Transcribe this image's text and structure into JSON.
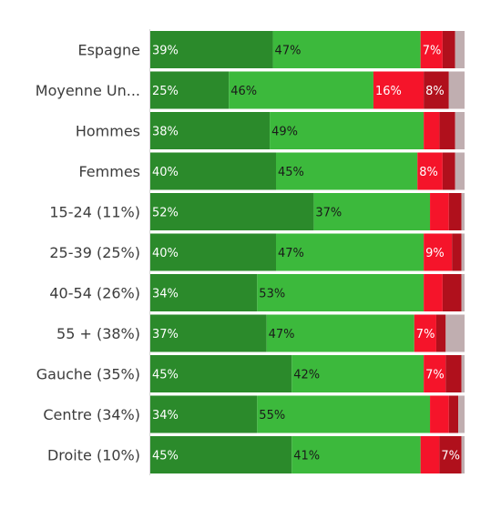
{
  "chart_data": {
    "type": "bar",
    "orientation": "horizontal",
    "stacked": true,
    "xlim": [
      0,
      100
    ],
    "legend": "none",
    "grid": false,
    "categories": [
      "Espagne",
      "Moyenne Un...",
      "Hommes",
      "Femmes",
      "15-24 (11%)",
      "25-39 (25%)",
      "40-54 (26%)",
      "55 + (38%)",
      "Gauche (35%)",
      "Centre (34%)",
      "Droite (10%)"
    ],
    "series": [
      {
        "color": "#2b8a2b",
        "label_color": "#ffffff",
        "values": [
          39,
          25,
          38,
          40,
          52,
          40,
          34,
          37,
          45,
          34,
          45
        ],
        "labels": [
          "39%",
          "25%",
          "38%",
          "40%",
          "52%",
          "40%",
          "34%",
          "37%",
          "45%",
          "34%",
          "45%"
        ]
      },
      {
        "color": "#3cb93c",
        "label_color": "#1a1a1a",
        "values": [
          47,
          46,
          49,
          45,
          37,
          47,
          53,
          47,
          42,
          55,
          41
        ],
        "labels": [
          "47%",
          "46%",
          "49%",
          "45%",
          "37%",
          "47%",
          "53%",
          "47%",
          "42%",
          "55%",
          "41%"
        ]
      },
      {
        "color": "#f5142a",
        "label_color": "#ffffff",
        "values": [
          7,
          16,
          5,
          8,
          6,
          9,
          6,
          7,
          7,
          6,
          6
        ],
        "labels": [
          "7%",
          "16%",
          "",
          "8%",
          "",
          "9%",
          "",
          "7%",
          "7%",
          "",
          ""
        ]
      },
      {
        "color": "#b0101c",
        "label_color": "#ffffff",
        "values": [
          4,
          8,
          5,
          4,
          4,
          3,
          6,
          3,
          5,
          3,
          7
        ],
        "labels": [
          "",
          "8%",
          "",
          "",
          "",
          "",
          "",
          "",
          "",
          "",
          "7%"
        ]
      },
      {
        "color": "#c0aeb0",
        "label_color": "#1a1a1a",
        "values": [
          3,
          5,
          3,
          3,
          1,
          1,
          1,
          6,
          1,
          2,
          1
        ],
        "labels": [
          "",
          "",
          "",
          "",
          "",
          "",
          "",
          "",
          "",
          "",
          ""
        ]
      }
    ]
  }
}
